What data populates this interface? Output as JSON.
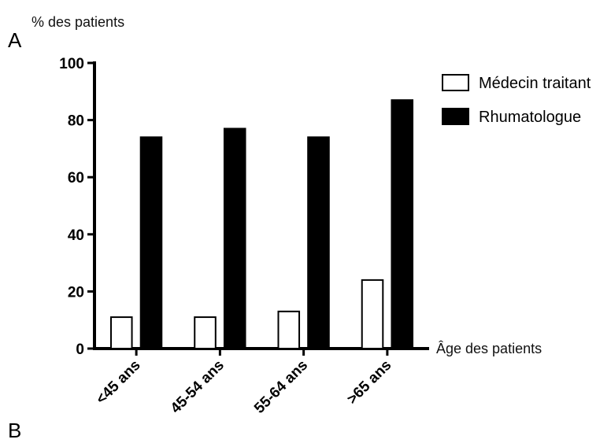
{
  "panel_labels": {
    "top": "A",
    "bottom": "B"
  },
  "colors": {
    "series_1_fill": "#ffffff",
    "series_2_fill": "#000000",
    "axis": "#000000"
  },
  "chart_data": {
    "type": "bar",
    "title": "",
    "ylabel": "% des patients",
    "xlabel": "Âge des patients",
    "categories": [
      "<45 ans",
      "45-54 ans",
      "55-64 ans",
      ">65 ans"
    ],
    "series": [
      {
        "name": "Médecin traitant",
        "values": [
          11,
          11,
          13,
          24
        ]
      },
      {
        "name": "Rhumatologue",
        "values": [
          74,
          77,
          74,
          87
        ]
      }
    ],
    "ylim": [
      0,
      100
    ],
    "yticks": [
      0,
      20,
      40,
      60,
      80,
      100
    ],
    "grid": false,
    "legend_position": "top-right"
  }
}
